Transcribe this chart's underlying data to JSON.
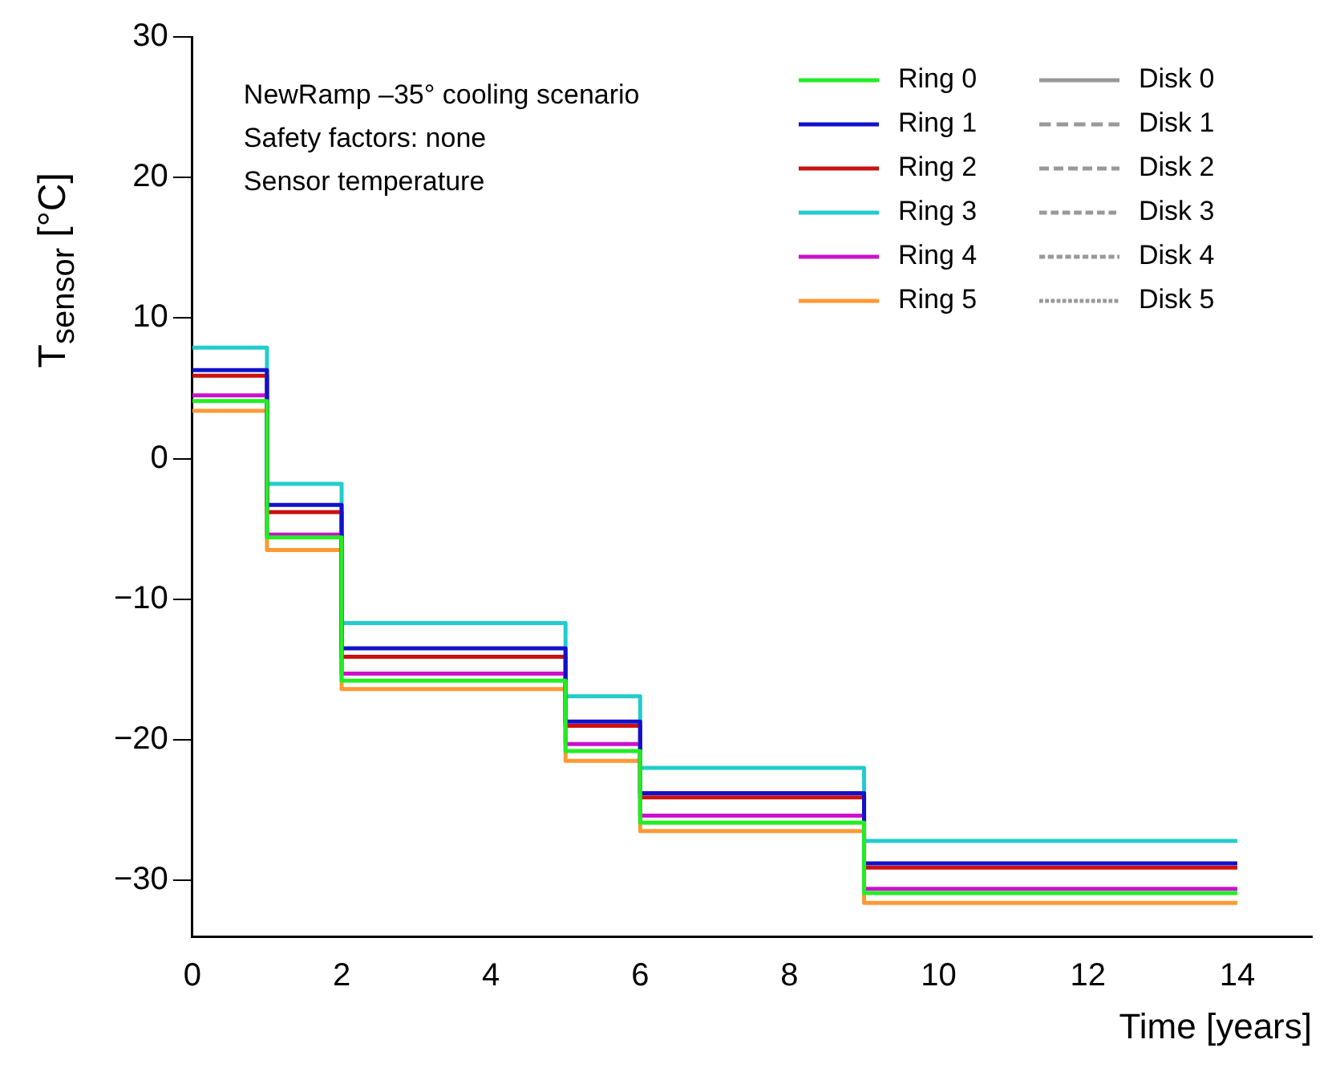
{
  "chart_data": {
    "type": "step",
    "xlabel": "Time [years]",
    "ylabel": "T$_{sensor}$ [°C]",
    "annotations": [
      "NewRamp –35° cooling scenario",
      "Safety factors: none",
      "Sensor temperature"
    ],
    "x": [
      0,
      1,
      2,
      5,
      6,
      9,
      14
    ],
    "series": [
      {
        "name": "Ring 0",
        "color": "#22ee22",
        "line_style": "solid",
        "values": [
          4.1,
          -5.6,
          -15.8,
          -20.8,
          -25.9,
          -30.9,
          -30.9
        ]
      },
      {
        "name": "Ring 1",
        "color": "#1111cc",
        "line_style": "solid",
        "values": [
          6.3,
          -3.3,
          -13.5,
          -18.7,
          -23.8,
          -28.8,
          -28.8
        ]
      },
      {
        "name": "Ring 2",
        "color": "#cc1111",
        "line_style": "solid",
        "values": [
          5.9,
          -3.8,
          -14.1,
          -19.0,
          -24.1,
          -29.1,
          -29.1
        ]
      },
      {
        "name": "Ring 3",
        "color": "#22cccc",
        "line_style": "solid",
        "values": [
          7.9,
          -1.8,
          -11.7,
          -16.9,
          -22.0,
          -27.2,
          -27.2
        ]
      },
      {
        "name": "Ring 4",
        "color": "#cc11cc",
        "line_style": "solid",
        "values": [
          4.5,
          -5.4,
          -15.3,
          -20.3,
          -25.4,
          -30.6,
          -30.6
        ]
      },
      {
        "name": "Ring 5",
        "color": "#ff9933",
        "line_style": "solid",
        "values": [
          3.4,
          -6.5,
          -16.4,
          -21.5,
          -26.5,
          -31.6,
          -31.6
        ]
      },
      {
        "name": "Disk 0",
        "color": "#999999",
        "line_style": "solid",
        "values": [
          null,
          null,
          null,
          null,
          null,
          null,
          null
        ]
      },
      {
        "name": "Disk 1",
        "color": "#999999",
        "line_style": "dashed",
        "values": [
          null,
          null,
          null,
          null,
          null,
          null,
          null
        ]
      },
      {
        "name": "Disk 2",
        "color": "#999999",
        "line_style": "dashed",
        "values": [
          null,
          null,
          null,
          null,
          null,
          null,
          null
        ]
      },
      {
        "name": "Disk 3",
        "color": "#999999",
        "line_style": "dashed",
        "values": [
          null,
          null,
          null,
          null,
          null,
          null,
          null
        ]
      },
      {
        "name": "Disk 4",
        "color": "#999999",
        "line_style": "dashed",
        "values": [
          null,
          null,
          null,
          null,
          null,
          null,
          null
        ]
      },
      {
        "name": "Disk 5",
        "color": "#999999",
        "line_style": "dashed",
        "values": [
          null,
          null,
          null,
          null,
          null,
          null,
          null
        ]
      }
    ],
    "xlim": [
      0,
      15
    ],
    "xticks": [
      0,
      2,
      4,
      6,
      8,
      10,
      12,
      14
    ],
    "ylim": [
      -34,
      30
    ],
    "yticks": [
      -30,
      -20,
      -10,
      0,
      10,
      20,
      30
    ],
    "grid": false,
    "legend": "top right"
  }
}
